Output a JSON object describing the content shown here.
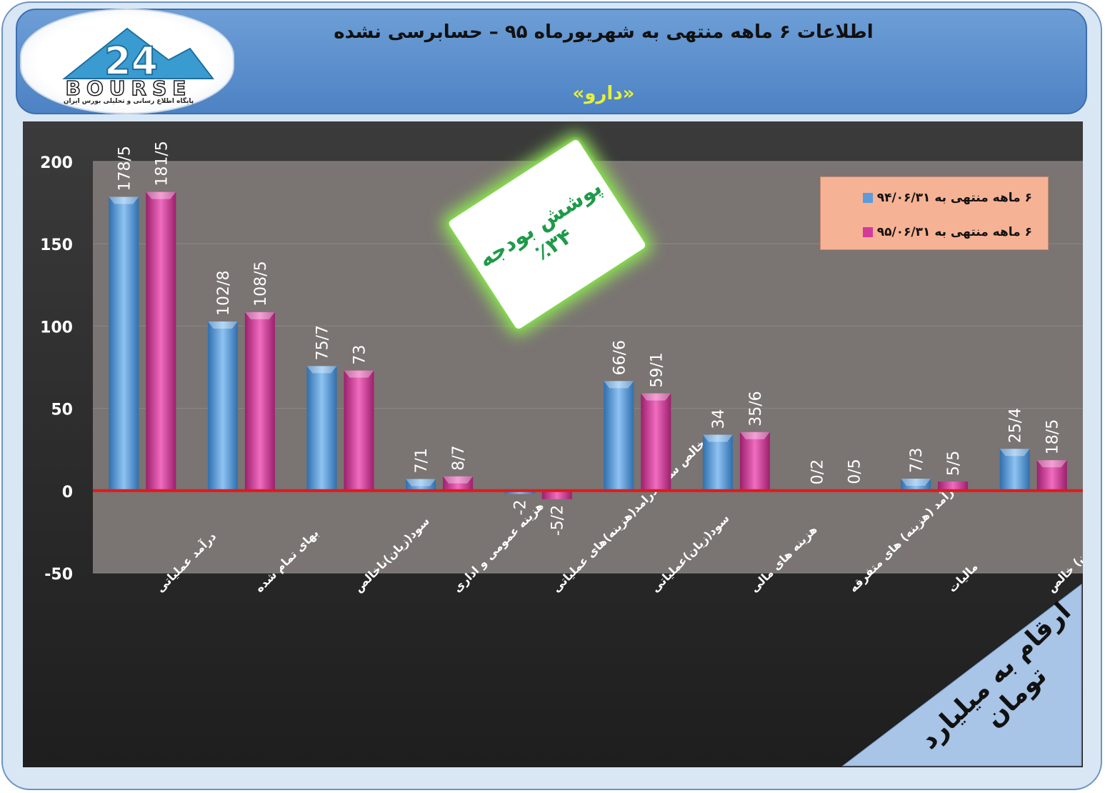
{
  "header": {
    "title": "اطلاعات ۶ ماهه منتهی به شهریورماه ۹۵ – حسابرسی نشده",
    "subtitle": "«دارو»",
    "logo_word": "BOURSE",
    "logo_sub": "پایگاه اطلاع رسانی و تحلیلی بورس ایران"
  },
  "budget": {
    "line1": "پوشش بودجه",
    "line2": "٪۳۴"
  },
  "unit_note": "ارقام به میلیارد تومان",
  "colors": {
    "series1": "#5b9bdc",
    "series2": "#d43a9a",
    "zero_line": "#e01a1a",
    "plot_bg": "#7a7472",
    "legend_bg": "#f6b294"
  },
  "chart_data": {
    "type": "bar",
    "categories": [
      "درآمد عملیاتی",
      "بهای تمام شده",
      "سود(زیان)ناخالص",
      "هزینه عمومی و اداری",
      "خالص سایر درامد(هزینه)های عملیاتی",
      "سود(زیان)عملیاتی",
      "هزینه های مالی",
      "درآمد (هزینه) های متفرقه",
      "مالیات",
      "سود(زیان) خالص"
    ],
    "series": [
      {
        "name": "۶ ماهه منتهی به ۹۴/۰۶/۳۱",
        "values": [
          178.5,
          102.8,
          75.7,
          7.1,
          -2,
          66.6,
          34,
          0.2,
          7.3,
          25.4
        ],
        "labels": [
          "178/5",
          "102/8",
          "75/7",
          "7/1",
          "-2",
          "66/6",
          "34",
          "0/2",
          "7/3",
          "25/4"
        ]
      },
      {
        "name": "۶ ماهه منتهی به ۹۵/۰۶/۳۱",
        "values": [
          181.5,
          108.5,
          73,
          8.7,
          -5.2,
          59.1,
          35.6,
          0.5,
          5.5,
          18.5
        ],
        "labels": [
          "181/5",
          "108/5",
          "73",
          "8/7",
          "-5/2",
          "59/1",
          "35/6",
          "0/5",
          "5/5",
          "18/5"
        ]
      }
    ],
    "yticks": [
      "200",
      "150",
      "100",
      "50",
      "0",
      "-50"
    ],
    "ylim": [
      -50,
      200
    ],
    "legend_position": "top-right",
    "grid": true
  }
}
